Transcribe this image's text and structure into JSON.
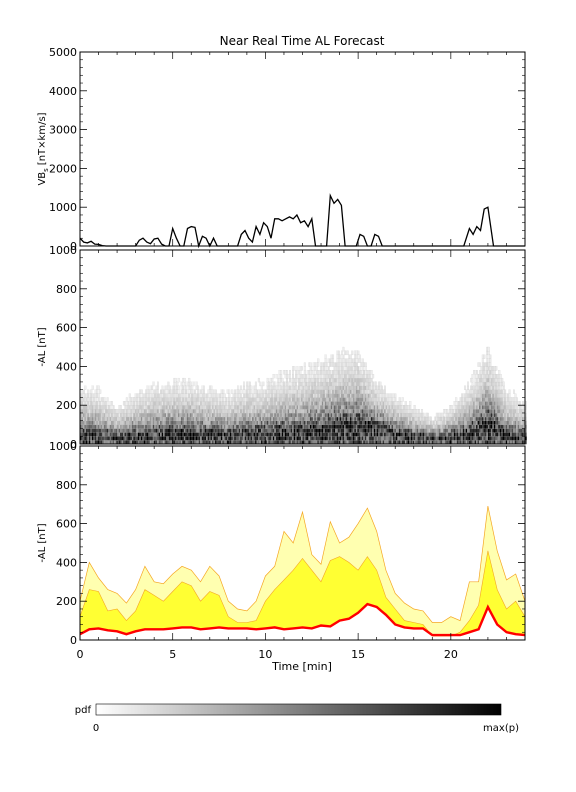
{
  "chart_data": [
    {
      "type": "line",
      "title": "Near Real Time AL Forecast",
      "ylabel_main": "VB",
      "ylabel_sub": "s",
      "ylabel_rest": "[nT×km/s]",
      "xlim": [
        0,
        24
      ],
      "ylim": [
        0,
        5000
      ],
      "yticks": [
        "0",
        "1000",
        "2000",
        "3000",
        "4000",
        "5000"
      ],
      "series": [
        {
          "color": "#000000",
          "x": [
            0.0,
            0.2,
            0.4,
            0.6,
            0.8,
            1.0,
            1.2,
            1.4,
            3.0,
            3.2,
            3.4,
            3.6,
            3.8,
            4.0,
            4.2,
            4.4,
            4.6,
            4.8,
            5.0,
            5.2,
            5.4,
            5.6,
            5.8,
            6.0,
            6.2,
            6.4,
            6.6,
            6.8,
            7.0,
            7.2,
            7.4,
            8.5,
            8.7,
            8.9,
            9.1,
            9.3,
            9.5,
            9.7,
            9.9,
            10.1,
            10.3,
            10.5,
            10.7,
            10.9,
            11.1,
            11.3,
            11.5,
            11.7,
            11.9,
            12.1,
            12.3,
            12.5,
            12.7,
            12.9,
            13.1,
            13.3,
            13.5,
            13.7,
            13.9,
            14.1,
            14.3,
            14.5,
            14.7,
            14.9,
            15.1,
            15.3,
            15.5,
            15.7,
            15.9,
            16.1,
            16.3,
            16.5,
            16.7,
            17.0,
            17.3,
            19.5,
            19.8,
            20.1,
            20.4,
            20.7,
            21.0,
            21.2,
            21.4,
            21.6,
            21.8,
            22.0,
            22.3,
            22.6,
            23.0,
            23.5,
            24.0
          ],
          "y": [
            200,
            100,
            80,
            120,
            50,
            40,
            10,
            0,
            0,
            150,
            200,
            100,
            60,
            180,
            200,
            50,
            0,
            0,
            450,
            200,
            0,
            0,
            450,
            500,
            480,
            0,
            250,
            200,
            0,
            200,
            0,
            0,
            300,
            400,
            200,
            100,
            500,
            300,
            600,
            500,
            200,
            700,
            700,
            650,
            700,
            750,
            700,
            800,
            600,
            650,
            500,
            700,
            0,
            0,
            0,
            0,
            1300,
            1100,
            1200,
            1050,
            0,
            0,
            0,
            0,
            300,
            250,
            0,
            0,
            300,
            250,
            0,
            0,
            0,
            0,
            0,
            0,
            0,
            0,
            0,
            0,
            450,
            300,
            500,
            400,
            950,
            1000,
            0,
            0,
            0,
            0,
            0
          ]
        }
      ]
    },
    {
      "type": "heatmap",
      "ylabel": "-AL [nT]",
      "xlim": [
        0,
        24
      ],
      "ylim": [
        0,
        1000
      ],
      "yticks": [
        "0",
        "200",
        "400",
        "600",
        "800",
        "1000"
      ],
      "colorscale": [
        "#ffffff",
        "#000000"
      ],
      "description_of_values": "probability density of -AL over time, darkest near the median",
      "median_x": [
        0,
        1,
        2,
        3,
        4,
        5,
        6,
        7,
        8,
        9,
        10,
        11,
        12,
        13,
        14,
        15,
        16,
        17,
        18,
        19,
        20,
        21,
        22,
        23,
        24
      ],
      "median_y": [
        40,
        45,
        35,
        40,
        45,
        50,
        55,
        50,
        45,
        50,
        55,
        60,
        65,
        75,
        90,
        110,
        80,
        55,
        40,
        30,
        35,
        60,
        110,
        45,
        35
      ],
      "spread_y": [
        320,
        300,
        200,
        280,
        330,
        350,
        340,
        300,
        280,
        330,
        340,
        380,
        420,
        450,
        500,
        480,
        330,
        250,
        200,
        140,
        200,
        330,
        500,
        300,
        230
      ]
    },
    {
      "type": "area",
      "ylabel": "-AL [nT]",
      "xlabel": "Time [min]",
      "xlim": [
        0,
        24
      ],
      "ylim": [
        0,
        1000
      ],
      "xticks": [
        "0",
        "5",
        "10",
        "15",
        "20"
      ],
      "yticks": [
        "0",
        "200",
        "400",
        "600",
        "800",
        "1000"
      ],
      "colors": {
        "median": "#ff0000",
        "inner_band": "#ffff33",
        "outer_band": "#ffffb0",
        "band_edge": "#f5a623"
      },
      "x": [
        0,
        0.5,
        1,
        1.5,
        2,
        2.5,
        3,
        3.5,
        4,
        4.5,
        5,
        5.5,
        6,
        6.5,
        7,
        7.5,
        8,
        8.5,
        9,
        9.5,
        10,
        10.5,
        11,
        11.5,
        12,
        12.5,
        13,
        13.5,
        14,
        14.5,
        15,
        15.5,
        16,
        16.5,
        17,
        17.5,
        18,
        18.5,
        19,
        19.5,
        20,
        20.5,
        21,
        21.5,
        22,
        22.5,
        23,
        23.5,
        24
      ],
      "median": [
        30,
        55,
        60,
        50,
        45,
        30,
        45,
        55,
        55,
        55,
        60,
        65,
        65,
        55,
        60,
        65,
        60,
        60,
        60,
        55,
        60,
        65,
        55,
        60,
        65,
        60,
        75,
        70,
        100,
        110,
        140,
        185,
        170,
        130,
        80,
        65,
        60,
        60,
        25,
        25,
        25,
        25,
        40,
        55,
        170,
        80,
        40,
        30,
        25
      ],
      "inner_upper": [
        120,
        260,
        250,
        150,
        160,
        100,
        150,
        260,
        230,
        200,
        250,
        300,
        280,
        200,
        250,
        230,
        120,
        90,
        90,
        100,
        200,
        260,
        310,
        360,
        420,
        360,
        300,
        410,
        430,
        400,
        360,
        430,
        360,
        220,
        160,
        100,
        90,
        80,
        20,
        20,
        20,
        40,
        100,
        180,
        460,
        260,
        160,
        200,
        120
      ],
      "outer_upper": [
        200,
        400,
        320,
        260,
        240,
        190,
        260,
        380,
        300,
        290,
        340,
        380,
        360,
        300,
        380,
        330,
        200,
        160,
        150,
        200,
        330,
        380,
        560,
        500,
        660,
        440,
        390,
        610,
        500,
        530,
        600,
        680,
        560,
        360,
        240,
        190,
        160,
        150,
        90,
        90,
        120,
        100,
        300,
        300,
        690,
        460,
        310,
        340,
        200
      ]
    },
    {
      "type": "heatmap",
      "legend_title": "pdf",
      "legend_min": "0",
      "legend_max": "max(p)",
      "colorscale": [
        "#ffffff",
        "#000000"
      ]
    }
  ]
}
